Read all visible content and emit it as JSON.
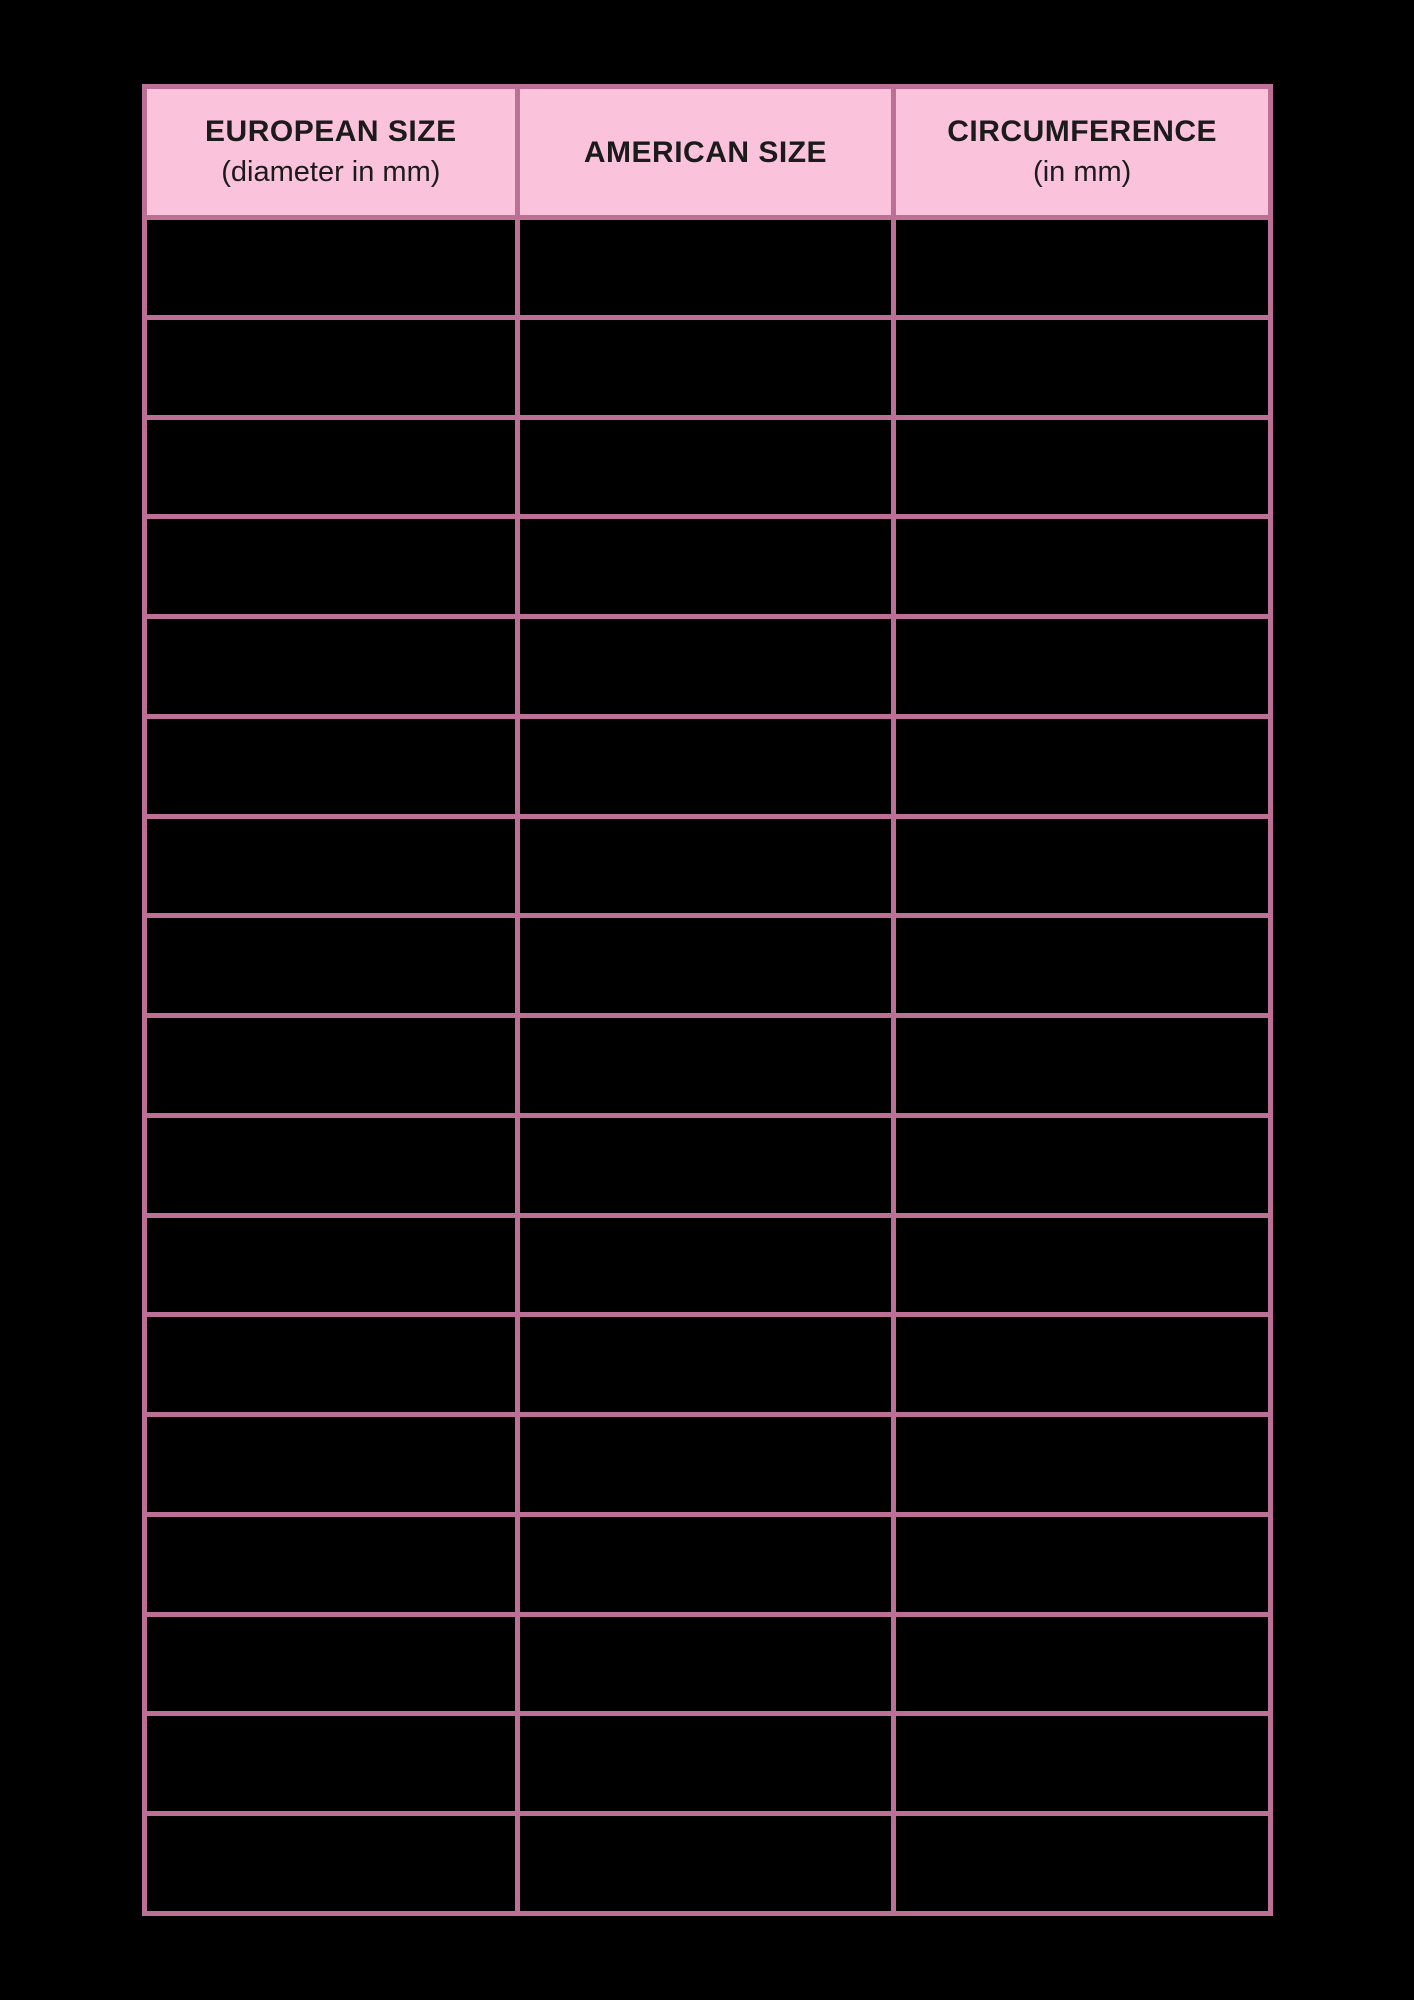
{
  "page": {
    "background": "#000000"
  },
  "table": {
    "colors": {
      "border": "#bd7095",
      "header_bg": "#fbc2db",
      "header_text": "#1b1b1b",
      "cell_bg": "#000000"
    },
    "columns": [
      {
        "title": "EUROPEAN SIZE",
        "subtitle": "(diameter in mm)"
      },
      {
        "title": "AMERICAN SIZE",
        "subtitle": ""
      },
      {
        "title": "CIRCUMFERENCE",
        "subtitle": "(in mm)"
      }
    ],
    "rows": [
      [
        "",
        "",
        ""
      ],
      [
        "",
        "",
        ""
      ],
      [
        "",
        "",
        ""
      ],
      [
        "",
        "",
        ""
      ],
      [
        "",
        "",
        ""
      ],
      [
        "",
        "",
        ""
      ],
      [
        "",
        "",
        ""
      ],
      [
        "",
        "",
        ""
      ],
      [
        "",
        "",
        ""
      ],
      [
        "",
        "",
        ""
      ],
      [
        "",
        "",
        ""
      ],
      [
        "",
        "",
        ""
      ],
      [
        "",
        "",
        ""
      ],
      [
        "",
        "",
        ""
      ],
      [
        "",
        "",
        ""
      ],
      [
        "",
        "",
        ""
      ],
      [
        "",
        "",
        ""
      ]
    ]
  }
}
